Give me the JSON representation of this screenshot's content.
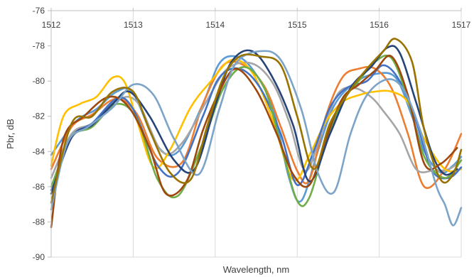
{
  "chart_data": {
    "type": "line",
    "title": "",
    "xlabel": "Wavelength, nm",
    "ylabel": "Pbr, dB",
    "xlim": [
      1512,
      1517
    ],
    "ylim": [
      -90,
      -76
    ],
    "x_ticks": [
      1512,
      1513,
      1514,
      1515,
      1516,
      1517
    ],
    "x_tick_labels": [
      "1512",
      "1513",
      "1514",
      "1515",
      "1516",
      "1517"
    ],
    "y_ticks": [
      -76,
      -78,
      -80,
      -82,
      -84,
      -86,
      -88,
      -90
    ],
    "y_tick_labels": [
      "-76",
      "-78",
      "-80",
      "-82",
      "-84",
      "-86",
      "-88",
      "-90"
    ],
    "x_axis_position": "top",
    "grid": "vertical-only",
    "legend": "none",
    "series": [
      {
        "color": "#5B9BD5",
        "x": [
          1512,
          1512.3,
          1512.55,
          1512.8,
          1513,
          1513.3,
          1513.55,
          1513.85,
          1514.05,
          1514.25,
          1514.45,
          1514.7,
          1514.9,
          1515.05,
          1515.25,
          1515.45,
          1515.7,
          1515.95,
          1516.2,
          1516.4,
          1516.55,
          1516.75,
          1516.9,
          1517
        ],
        "y": [
          -84.2,
          -82.3,
          -81.6,
          -80.6,
          -80.7,
          -83.7,
          -84.0,
          -81.3,
          -79.0,
          -78.6,
          -79.3,
          -81.5,
          -85.5,
          -86.8,
          -84.0,
          -81.4,
          -80.1,
          -79.6,
          -79.8,
          -82.0,
          -84.0,
          -85.2,
          -84.8,
          -84.3
        ]
      },
      {
        "color": "#ED7D31",
        "x": [
          1512,
          1512.25,
          1512.5,
          1512.8,
          1513.05,
          1513.3,
          1513.6,
          1513.85,
          1514.1,
          1514.35,
          1514.6,
          1514.8,
          1515.0,
          1515.15,
          1515.35,
          1515.55,
          1515.75,
          1515.95,
          1516.15,
          1516.35,
          1516.55,
          1516.8,
          1517
        ],
        "y": [
          -85.0,
          -82.6,
          -81.9,
          -81.0,
          -81.9,
          -84.4,
          -84.6,
          -81.3,
          -79.1,
          -79.1,
          -80.3,
          -82.6,
          -85.1,
          -85.6,
          -82.0,
          -79.8,
          -79.3,
          -79.3,
          -80.4,
          -83.0,
          -86.0,
          -85.0,
          -83.0
        ]
      },
      {
        "color": "#A5A5A5",
        "x": [
          1512,
          1512.25,
          1512.5,
          1512.8,
          1513.05,
          1513.35,
          1513.6,
          1513.9,
          1514.15,
          1514.45,
          1514.7,
          1514.9,
          1515.1,
          1515.3,
          1515.5,
          1515.7,
          1515.9,
          1516.05,
          1516.25,
          1516.45,
          1516.65,
          1516.85,
          1517
        ],
        "y": [
          -85.5,
          -83.0,
          -82.4,
          -81.1,
          -81.2,
          -84.0,
          -83.5,
          -81.1,
          -79.3,
          -79.0,
          -80.1,
          -82.3,
          -85.1,
          -82.9,
          -80.7,
          -80.4,
          -80.9,
          -81.7,
          -83.0,
          -85.0,
          -85.1,
          -85.0,
          -84.5
        ]
      },
      {
        "color": "#FFC000",
        "x": [
          1512,
          1512.15,
          1512.35,
          1512.55,
          1512.75,
          1512.9,
          1513.05,
          1513.25,
          1513.45,
          1513.7,
          1513.95,
          1514.2,
          1514.45,
          1514.7,
          1514.95,
          1515.15,
          1515.35,
          1515.55,
          1515.75,
          1515.95,
          1516.15,
          1516.35,
          1516.55,
          1516.8,
          1517
        ],
        "y": [
          -84.8,
          -82.0,
          -81.3,
          -80.9,
          -79.8,
          -80.1,
          -82.3,
          -84.9,
          -83.9,
          -81.5,
          -80.0,
          -78.8,
          -79.5,
          -82.2,
          -85.6,
          -84.2,
          -82.3,
          -81.2,
          -80.8,
          -80.6,
          -80.6,
          -81.2,
          -83.3,
          -85.0,
          -85.0
        ]
      },
      {
        "color": "#4472C4",
        "x": [
          1512,
          1512.25,
          1512.5,
          1512.8,
          1513.0,
          1513.3,
          1513.55,
          1513.85,
          1514.05,
          1514.3,
          1514.55,
          1514.8,
          1515.0,
          1515.2,
          1515.4,
          1515.6,
          1515.85,
          1516.05,
          1516.25,
          1516.45,
          1516.65,
          1516.85,
          1517
        ],
        "y": [
          -86.2,
          -83.2,
          -82.4,
          -81.0,
          -81.6,
          -84.8,
          -85.2,
          -82.0,
          -79.8,
          -79.3,
          -80.4,
          -83.0,
          -85.9,
          -84.0,
          -81.5,
          -80.4,
          -80.0,
          -79.1,
          -80.0,
          -82.3,
          -85.1,
          -85.5,
          -84.9
        ]
      },
      {
        "color": "#70AD47",
        "x": [
          1512,
          1512.25,
          1512.5,
          1512.8,
          1513.05,
          1513.3,
          1513.55,
          1513.85,
          1514.1,
          1514.35,
          1514.6,
          1514.8,
          1515.0,
          1515.15,
          1515.35,
          1515.55,
          1515.75,
          1515.95,
          1516.15,
          1516.35,
          1516.55,
          1516.8,
          1517
        ],
        "y": [
          -86.0,
          -83.2,
          -82.6,
          -81.3,
          -82.2,
          -85.6,
          -86.5,
          -83.5,
          -80.4,
          -79.2,
          -80.4,
          -83.6,
          -86.8,
          -86.6,
          -83.5,
          -81.2,
          -80.0,
          -78.9,
          -78.7,
          -81.0,
          -84.3,
          -85.5,
          -84.5
        ]
      },
      {
        "color": "#264478",
        "x": [
          1512,
          1512.25,
          1512.5,
          1512.75,
          1512.95,
          1513.2,
          1513.5,
          1513.75,
          1514.0,
          1514.2,
          1514.45,
          1514.7,
          1514.95,
          1515.15,
          1515.4,
          1515.65,
          1515.9,
          1516.1,
          1516.25,
          1516.45,
          1516.65,
          1516.8,
          1516.95
        ],
        "y": [
          -86.4,
          -83.2,
          -82.5,
          -81.3,
          -80.6,
          -82.0,
          -84.5,
          -85.0,
          -81.4,
          -78.9,
          -78.3,
          -79.8,
          -82.5,
          -85.7,
          -83.0,
          -80.4,
          -79.2,
          -78.1,
          -78.4,
          -81.2,
          -84.2,
          -85.3,
          -85.0
        ]
      },
      {
        "color": "#9E480E",
        "x": [
          1512,
          1512.15,
          1512.4,
          1512.7,
          1512.95,
          1513.2,
          1513.4,
          1513.65,
          1513.85,
          1514.05,
          1514.25,
          1514.5,
          1514.75,
          1514.95,
          1515.15,
          1515.35,
          1515.55,
          1515.75,
          1515.95,
          1516.15,
          1516.35,
          1516.55,
          1516.75,
          1516.95
        ],
        "y": [
          -88.3,
          -83.3,
          -82.0,
          -80.9,
          -81.5,
          -83.8,
          -86.4,
          -85.7,
          -82.8,
          -80.6,
          -79.3,
          -80.5,
          -83.0,
          -85.3,
          -85.9,
          -83.3,
          -81.0,
          -80.2,
          -79.4,
          -78.6,
          -80.8,
          -84.7,
          -84.7,
          -83.8
        ]
      },
      {
        "color": "#7CA3C8",
        "x": [
          1512,
          1512.2,
          1512.45,
          1512.75,
          1513.0,
          1513.25,
          1513.5,
          1513.8,
          1514.05,
          1514.25,
          1514.55,
          1514.8,
          1515.05,
          1515.25,
          1515.45,
          1515.65,
          1515.85,
          1516.1,
          1516.3,
          1516.5,
          1516.7,
          1516.8,
          1516.9,
          1517
        ],
        "y": [
          -87.3,
          -83.5,
          -82.6,
          -81.5,
          -80.2,
          -80.8,
          -83.3,
          -85.3,
          -81.6,
          -79.0,
          -78.3,
          -78.8,
          -81.6,
          -85.2,
          -86.3,
          -83.0,
          -80.8,
          -79.9,
          -80.5,
          -82.8,
          -86.0,
          -87.0,
          -88.2,
          -87.2
        ]
      },
      {
        "color": "#997300",
        "x": [
          1512,
          1512.25,
          1512.5,
          1512.75,
          1513.0,
          1513.2,
          1513.45,
          1513.7,
          1513.9,
          1514.1,
          1514.3,
          1514.55,
          1514.8,
          1515.0,
          1515.2,
          1515.4,
          1515.65,
          1515.85,
          1516.05,
          1516.2,
          1516.4,
          1516.55,
          1516.75,
          1516.9,
          1517
        ],
        "y": [
          -86.9,
          -82.4,
          -82.0,
          -80.6,
          -80.6,
          -82.8,
          -85.2,
          -85.6,
          -82.6,
          -79.8,
          -78.6,
          -78.6,
          -79.1,
          -82.0,
          -85.0,
          -82.4,
          -80.5,
          -79.3,
          -78.3,
          -77.6,
          -78.9,
          -82.8,
          -85.6,
          -85.3,
          -83.9
        ]
      }
    ]
  }
}
